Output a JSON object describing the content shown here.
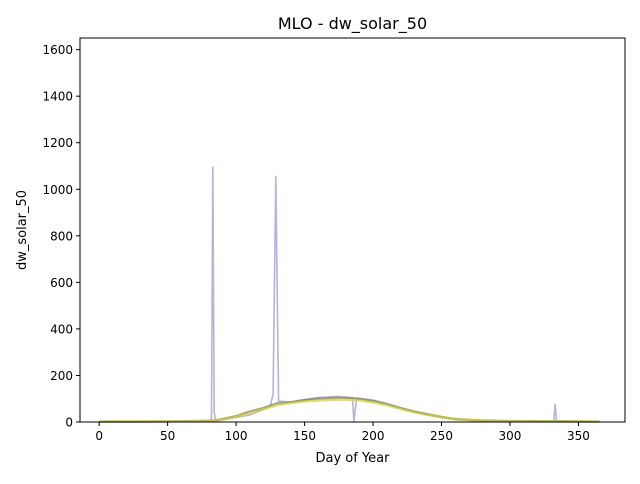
{
  "chart_data": {
    "type": "line",
    "title": "MLO - dw_solar_50",
    "xlabel": "Day of Year",
    "ylabel": "dw_solar_50",
    "xlim": [
      -14,
      384
    ],
    "ylim": [
      0,
      1650
    ],
    "xticks": [
      0,
      50,
      100,
      150,
      200,
      250,
      300,
      350
    ],
    "yticks": [
      0,
      200,
      400,
      600,
      800,
      1000,
      1200,
      1400,
      1600
    ],
    "grid": false,
    "legend": false,
    "series": [
      {
        "color": "#9b9bd0",
        "values": [
          [
            0,
            0
          ],
          [
            5,
            4
          ],
          [
            10,
            2
          ],
          [
            30,
            2
          ],
          [
            60,
            3
          ],
          [
            80,
            5
          ],
          [
            82,
            8
          ],
          [
            83,
            1095
          ],
          [
            84,
            40
          ],
          [
            85,
            10
          ],
          [
            90,
            10
          ],
          [
            110,
            30
          ],
          [
            120,
            55
          ],
          [
            125,
            70
          ],
          [
            127,
            120
          ],
          [
            129,
            1055
          ],
          [
            131,
            90
          ],
          [
            140,
            85
          ],
          [
            160,
            105
          ],
          [
            175,
            110
          ],
          [
            185,
            100
          ],
          [
            186,
            5
          ],
          [
            188,
            100
          ],
          [
            200,
            90
          ],
          [
            230,
            45
          ],
          [
            250,
            20
          ],
          [
            270,
            8
          ],
          [
            300,
            4
          ],
          [
            331,
            3
          ],
          [
            332,
            5
          ],
          [
            333,
            75
          ],
          [
            334,
            5
          ],
          [
            350,
            3
          ],
          [
            366,
            2
          ]
        ]
      },
      {
        "color": "#7a7a7a",
        "values": [
          [
            0,
            2
          ],
          [
            30,
            2
          ],
          [
            60,
            3
          ],
          [
            85,
            6
          ],
          [
            100,
            25
          ],
          [
            110,
            45
          ],
          [
            120,
            60
          ],
          [
            130,
            80
          ],
          [
            140,
            85
          ],
          [
            150,
            95
          ],
          [
            160,
            100
          ],
          [
            170,
            103
          ],
          [
            180,
            105
          ],
          [
            190,
            100
          ],
          [
            200,
            92
          ],
          [
            210,
            78
          ],
          [
            220,
            60
          ],
          [
            230,
            45
          ],
          [
            240,
            33
          ],
          [
            250,
            22
          ],
          [
            260,
            12
          ],
          [
            280,
            6
          ],
          [
            300,
            4
          ],
          [
            330,
            3
          ],
          [
            365,
            2
          ]
        ]
      },
      {
        "color": "#d6d628",
        "values": [
          [
            0,
            2
          ],
          [
            30,
            2
          ],
          [
            60,
            3
          ],
          [
            85,
            5
          ],
          [
            100,
            22
          ],
          [
            110,
            38
          ],
          [
            120,
            55
          ],
          [
            130,
            72
          ],
          [
            140,
            82
          ],
          [
            150,
            88
          ],
          [
            160,
            92
          ],
          [
            170,
            95
          ],
          [
            180,
            96
          ],
          [
            190,
            92
          ],
          [
            200,
            84
          ],
          [
            210,
            72
          ],
          [
            220,
            56
          ],
          [
            230,
            42
          ],
          [
            240,
            30
          ],
          [
            250,
            20
          ],
          [
            260,
            11
          ],
          [
            280,
            5
          ],
          [
            300,
            3
          ],
          [
            330,
            2
          ],
          [
            365,
            2
          ]
        ]
      }
    ]
  }
}
